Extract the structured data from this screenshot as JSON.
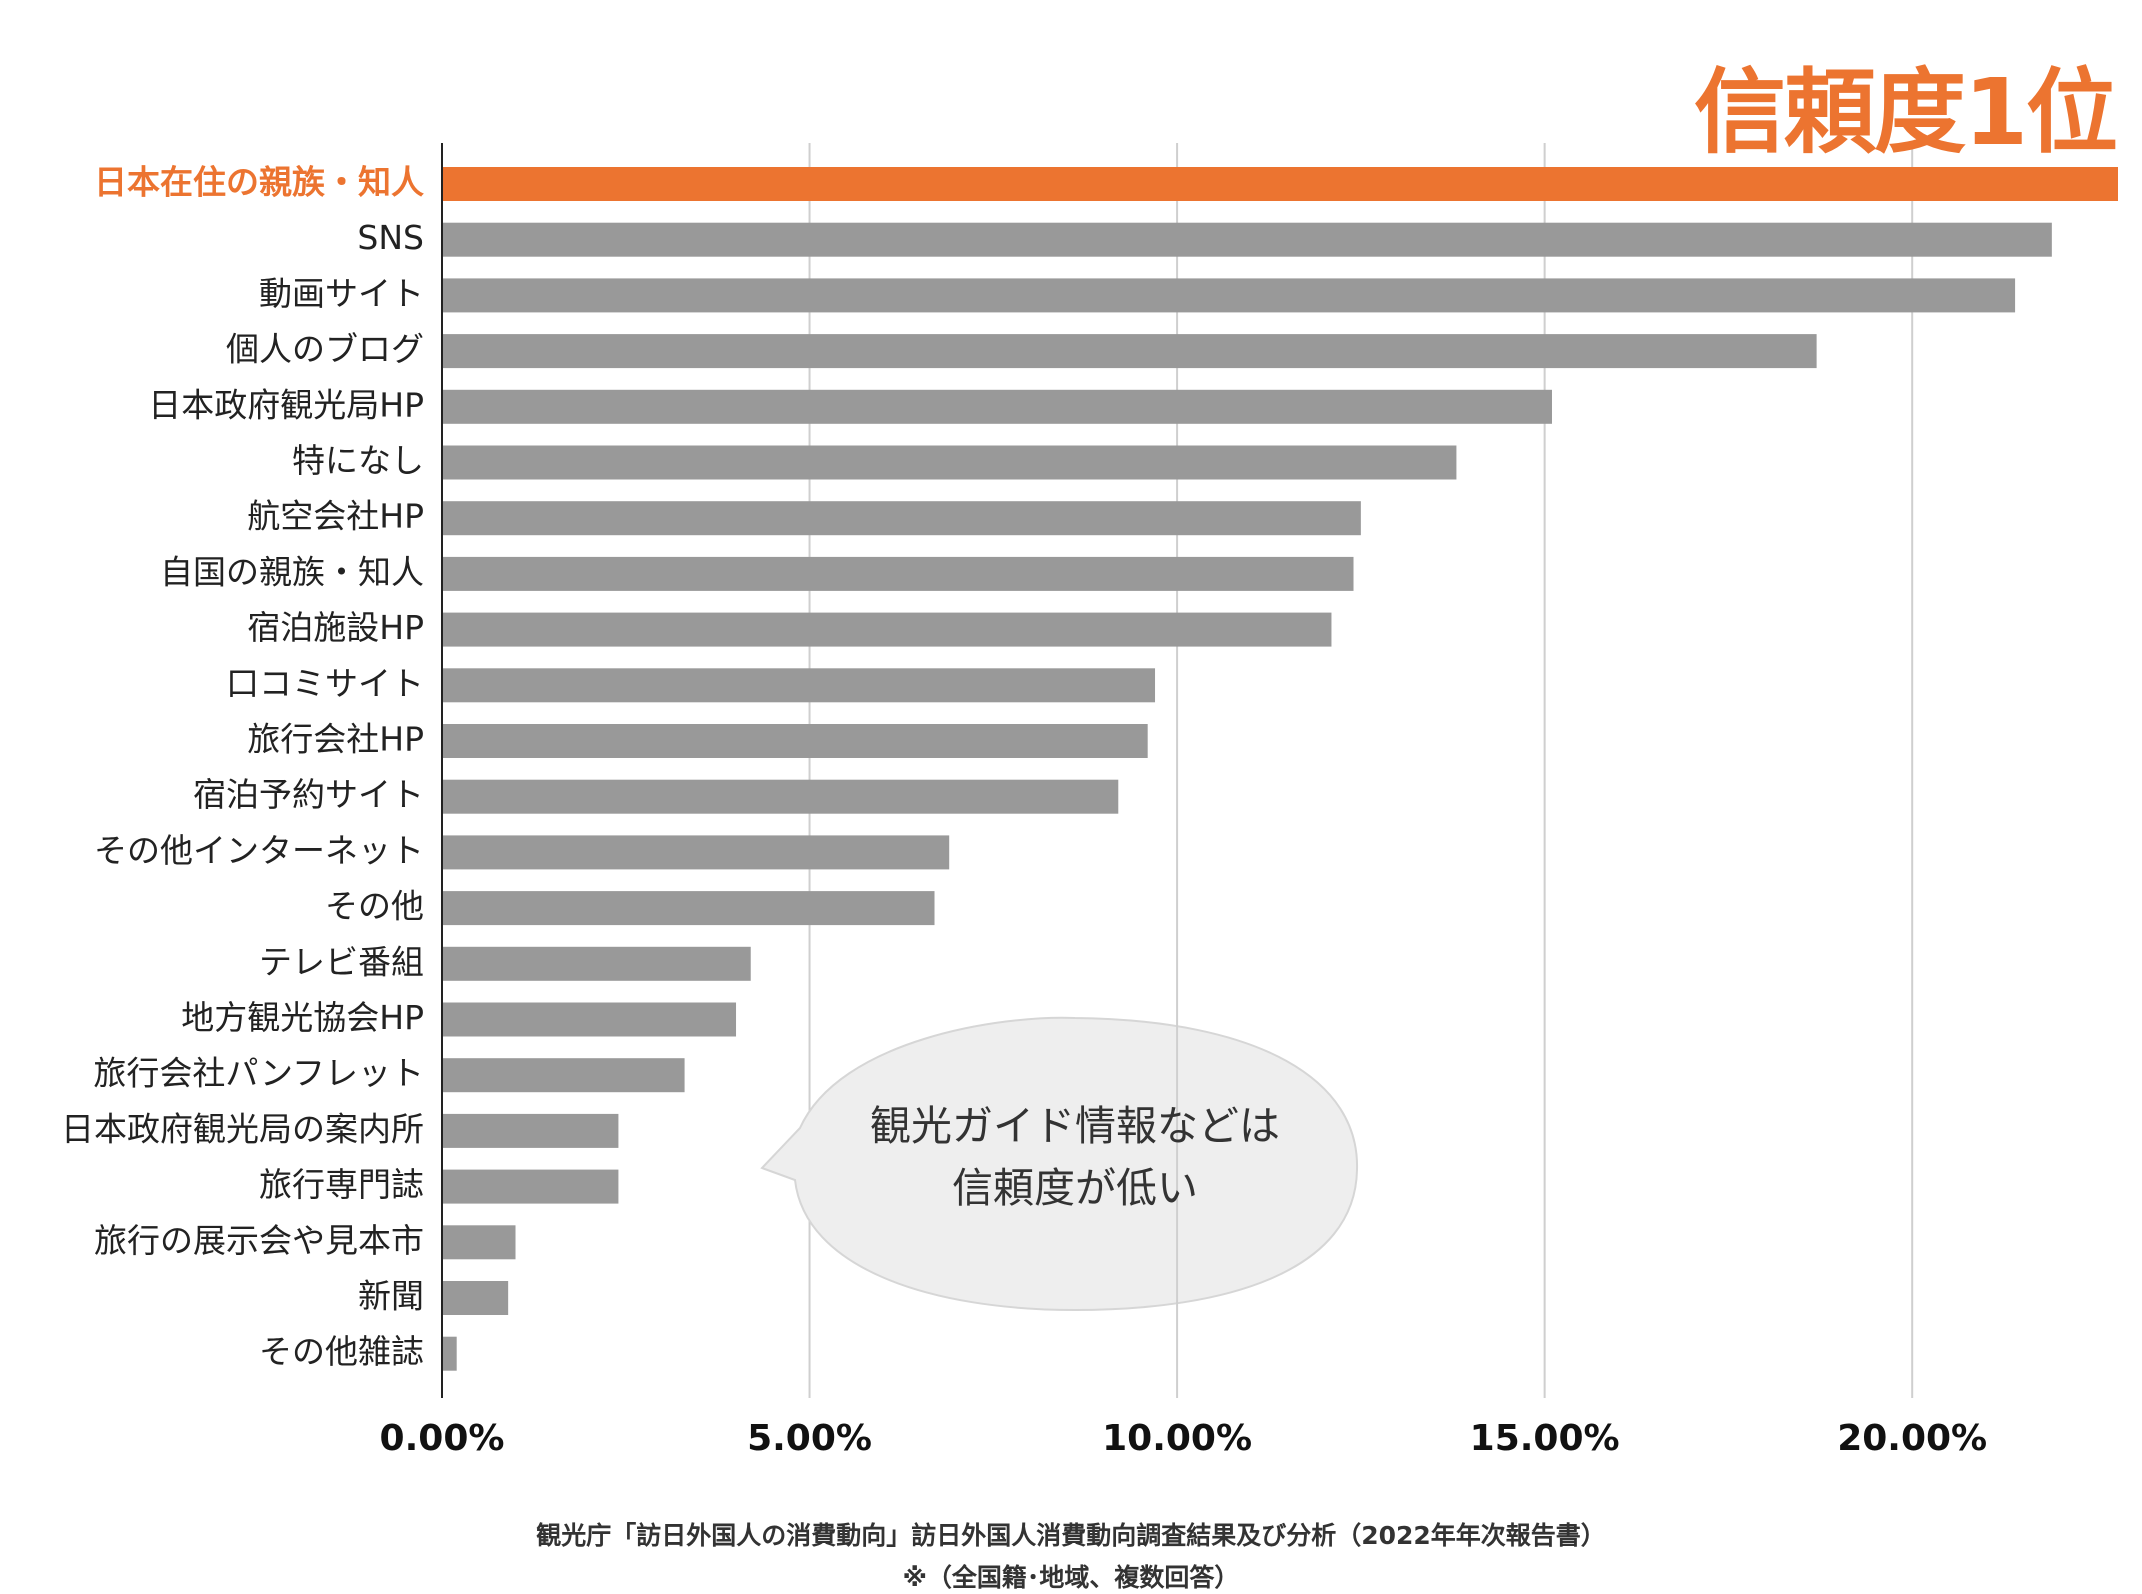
{
  "badge": "信頼度1位",
  "callout": {
    "line1": "観光ガイド情報などは",
    "line2": "信頼度が低い"
  },
  "source": {
    "line1": "観光庁「訪日外国人の消費動向」訪日外国人消費動向調査結果及び分析（2022年年次報告書）",
    "line2": "※（全国籍･地域、複数回答）"
  },
  "colors": {
    "highlight": "#ec7430",
    "bar": "#999999"
  },
  "chart_data": {
    "type": "bar",
    "orientation": "horizontal",
    "categories": [
      "日本在住の親族・知人",
      "SNS",
      "動画サイト",
      "個人のブログ",
      "日本政府観光局HP",
      "特になし",
      "航空会社HP",
      "自国の親族・知人",
      "宿泊施設HP",
      "口コミサイト",
      "旅行会社HP",
      "宿泊予約サイト",
      "その他インターネット",
      "その他",
      "テレビ番組",
      "地方観光協会HP",
      "旅行会社パンフレット",
      "日本政府観光局の案内所",
      "旅行専門誌",
      "旅行の展示会や見本市",
      "新聞",
      "その他雑誌"
    ],
    "values": [
      22.8,
      21.9,
      21.4,
      18.7,
      15.1,
      13.8,
      12.5,
      12.4,
      12.1,
      9.7,
      9.6,
      9.2,
      6.9,
      6.7,
      4.2,
      4.0,
      3.3,
      2.4,
      2.4,
      1.0,
      0.9,
      0.2
    ],
    "highlight_index": 0,
    "xlim": [
      0,
      22.8
    ],
    "xticks": [
      "0.00%",
      "5.00%",
      "10.00%",
      "15.00%",
      "20.00%"
    ],
    "xtick_values": [
      0,
      5,
      10,
      15,
      20
    ],
    "grid": true
  }
}
